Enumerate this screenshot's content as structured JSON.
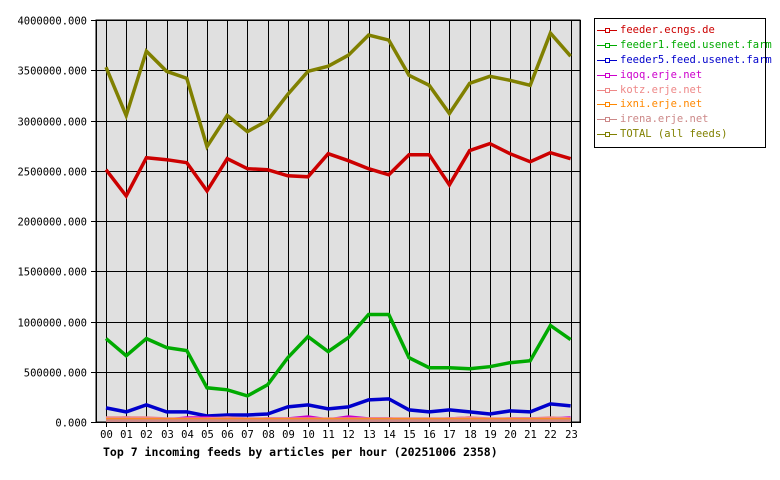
{
  "chart_data": {
    "type": "line",
    "title": "Top 7 incoming feeds by articles per hour (20251006 2358)",
    "xlabel": "",
    "ylabel": "",
    "ylim": [
      0,
      4000000
    ],
    "grid": true,
    "legend_position": "right-top",
    "y_ticks": [
      "0.000",
      "500000.000",
      "1000000.000",
      "1500000.000",
      "2000000.000",
      "2500000.000",
      "3000000.000",
      "3500000.000",
      "4000000.000"
    ],
    "categories": [
      "00",
      "01",
      "02",
      "03",
      "04",
      "05",
      "06",
      "07",
      "08",
      "09",
      "10",
      "11",
      "12",
      "13",
      "14",
      "15",
      "16",
      "17",
      "18",
      "19",
      "20",
      "21",
      "22",
      "23"
    ],
    "series": [
      {
        "name": "feeder.ecngs.de",
        "color": "#cc0000",
        "values": [
          2510000,
          2250000,
          2630000,
          2610000,
          2580000,
          2300000,
          2620000,
          2520000,
          2510000,
          2450000,
          2440000,
          2670000,
          2600000,
          2520000,
          2460000,
          2660000,
          2660000,
          2360000,
          2700000,
          2770000,
          2670000,
          2590000,
          2680000,
          2620000
        ]
      },
      {
        "name": "feeder1.feed.usenet.farm",
        "color": "#00aa00",
        "values": [
          830000,
          660000,
          830000,
          740000,
          710000,
          340000,
          320000,
          260000,
          370000,
          640000,
          850000,
          700000,
          840000,
          1070000,
          1070000,
          640000,
          540000,
          540000,
          530000,
          550000,
          590000,
          610000,
          960000,
          820000
        ]
      },
      {
        "name": "feeder5.feed.usenet.farm",
        "color": "#0000cc",
        "values": [
          140000,
          100000,
          170000,
          100000,
          100000,
          60000,
          70000,
          70000,
          80000,
          150000,
          170000,
          130000,
          150000,
          220000,
          230000,
          120000,
          100000,
          120000,
          100000,
          80000,
          110000,
          100000,
          180000,
          160000
        ]
      },
      {
        "name": "iqoq.erje.net",
        "color": "#cc00cc",
        "values": [
          30000,
          40000,
          30000,
          20000,
          40000,
          40000,
          30000,
          20000,
          30000,
          30000,
          50000,
          20000,
          50000,
          30000,
          30000,
          20000,
          20000,
          30000,
          40000,
          20000,
          30000,
          30000,
          30000,
          40000
        ]
      },
      {
        "name": "kotz.erje.net",
        "color": "#ee8888",
        "values": [
          40000,
          40000,
          40000,
          30000,
          30000,
          30000,
          40000,
          30000,
          30000,
          30000,
          30000,
          30000,
          30000,
          30000,
          30000,
          30000,
          30000,
          30000,
          40000,
          30000,
          30000,
          30000,
          40000,
          30000
        ]
      },
      {
        "name": "ixni.erje.net",
        "color": "#ff8800",
        "values": [
          20000,
          20000,
          20000,
          20000,
          20000,
          20000,
          20000,
          20000,
          20000,
          20000,
          20000,
          20000,
          20000,
          20000,
          20000,
          20000,
          20000,
          20000,
          20000,
          20000,
          20000,
          20000,
          20000,
          20000
        ]
      },
      {
        "name": "irena.erje.net",
        "color": "#cc8888",
        "values": [
          10000,
          10000,
          10000,
          10000,
          10000,
          10000,
          10000,
          10000,
          10000,
          10000,
          10000,
          10000,
          10000,
          10000,
          10000,
          10000,
          10000,
          10000,
          10000,
          10000,
          10000,
          10000,
          10000,
          10000
        ]
      },
      {
        "name": "TOTAL (all feeds)",
        "color": "#808000",
        "values": [
          3530000,
          3050000,
          3690000,
          3490000,
          3420000,
          2740000,
          3050000,
          2890000,
          3000000,
          3260000,
          3490000,
          3540000,
          3650000,
          3850000,
          3800000,
          3450000,
          3350000,
          3070000,
          3370000,
          3440000,
          3400000,
          3350000,
          3870000,
          3640000
        ]
      }
    ]
  },
  "legend": {
    "items": [
      {
        "label": "feeder.ecngs.de",
        "color": "#cc0000"
      },
      {
        "label": "feeder1.feed.usenet.farm",
        "color": "#00aa00"
      },
      {
        "label": "feeder5.feed.usenet.farm",
        "color": "#0000cc"
      },
      {
        "label": "iqoq.erje.net",
        "color": "#cc00cc"
      },
      {
        "label": "kotz.erje.net",
        "color": "#ee8888"
      },
      {
        "label": "ixni.erje.net",
        "color": "#ff8800"
      },
      {
        "label": "irena.erje.net",
        "color": "#cc8888"
      },
      {
        "label": "TOTAL (all feeds)",
        "color": "#808000"
      }
    ]
  },
  "colors": {
    "plot_background": "#e0e0e0",
    "grid": "#000000",
    "page_background": "#ffffff"
  }
}
